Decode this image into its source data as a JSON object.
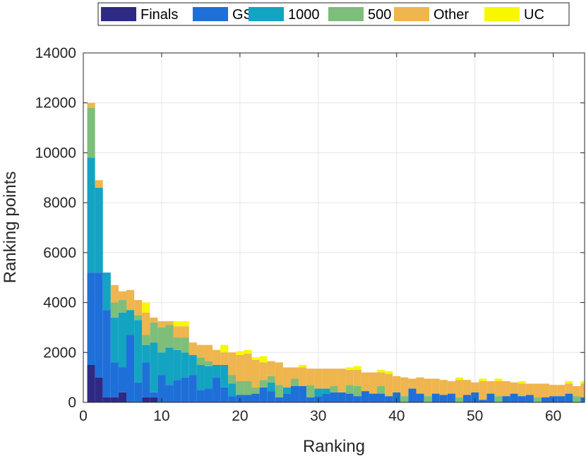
{
  "chart_data": {
    "type": "bar",
    "stacked": true,
    "xlabel": "Ranking",
    "ylabel": "Ranking points",
    "xlim": [
      0,
      64
    ],
    "ylim": [
      0,
      14000
    ],
    "x_ticks": [
      0,
      10,
      20,
      30,
      40,
      50,
      60
    ],
    "y_ticks": [
      0,
      2000,
      4000,
      6000,
      8000,
      10000,
      12000,
      14000
    ],
    "grid": true,
    "legend_position": "top",
    "series": [
      {
        "name": "Finals",
        "color": "#2e2a84",
        "values": [
          1500,
          1000,
          200,
          200,
          400,
          0,
          0,
          200,
          200,
          0,
          0,
          0,
          0,
          0,
          0,
          0,
          0,
          0,
          0,
          0,
          0,
          0,
          0,
          0,
          0,
          0,
          0,
          0,
          0,
          0,
          0,
          0,
          0,
          0,
          0,
          0,
          0,
          0,
          0,
          0,
          0,
          0,
          0,
          0,
          0,
          0,
          0,
          0,
          0,
          0,
          0,
          0,
          0,
          0,
          0,
          0,
          0,
          0,
          0,
          0,
          0,
          0,
          0,
          0
        ]
      },
      {
        "name": "GS",
        "color": "#1f6fd9",
        "values": [
          3700,
          4200,
          3500,
          1400,
          1000,
          2700,
          800,
          1400,
          200,
          1100,
          700,
          900,
          1000,
          1100,
          500,
          550,
          1000,
          600,
          250,
          300,
          300,
          350,
          600,
          450,
          200,
          350,
          650,
          650,
          200,
          250,
          350,
          400,
          400,
          350,
          250,
          450,
          350,
          350,
          250,
          400,
          0,
          550,
          350,
          0,
          350,
          300,
          350,
          0,
          300,
          400,
          100,
          350,
          0,
          250,
          350,
          250,
          300,
          0,
          200,
          250,
          250,
          350,
          0,
          200
        ]
      },
      {
        "name": "1000",
        "color": "#13a4c2",
        "values": [
          4600,
          3400,
          1500,
          1800,
          2200,
          1000,
          2500,
          700,
          2000,
          900,
          1500,
          1200,
          1000,
          800,
          1000,
          900,
          500,
          900,
          500,
          0,
          0,
          0,
          0,
          350,
          0,
          250,
          0,
          0,
          0,
          300,
          200,
          0,
          0,
          0,
          0,
          0,
          0,
          0,
          0,
          0,
          0,
          0,
          0,
          0,
          0,
          0,
          0,
          0,
          0,
          0,
          0,
          0,
          0,
          0,
          0,
          0,
          0,
          0,
          0,
          0,
          0,
          0,
          0,
          0
        ]
      },
      {
        "name": "500",
        "color": "#7dbe7a",
        "values": [
          2000,
          0,
          0,
          600,
          500,
          0,
          200,
          400,
          800,
          1000,
          900,
          500,
          600,
          0,
          300,
          200,
          0,
          0,
          350,
          550,
          550,
          250,
          300,
          250,
          500,
          0,
          300,
          0,
          500,
          0,
          0,
          250,
          0,
          350,
          400,
          0,
          0,
          300,
          0,
          0,
          250,
          0,
          0,
          250,
          0,
          0,
          0,
          200,
          0,
          0,
          0,
          0,
          250,
          0,
          0,
          0,
          0,
          200,
          0,
          0,
          0,
          0,
          250,
          0
        ]
      },
      {
        "name": "Other",
        "color": "#efb54e",
        "values": [
          200,
          300,
          0,
          700,
          350,
          800,
          600,
          900,
          200,
          250,
          150,
          450,
          450,
          500,
          500,
          650,
          600,
          500,
          900,
          1050,
          1100,
          1100,
          700,
          600,
          900,
          800,
          450,
          750,
          650,
          800,
          800,
          700,
          950,
          600,
          650,
          750,
          850,
          550,
          900,
          650,
          750,
          400,
          650,
          700,
          600,
          600,
          500,
          700,
          600,
          400,
          750,
          500,
          600,
          600,
          450,
          500,
          450,
          550,
          550,
          450,
          450,
          400,
          400,
          550
        ]
      },
      {
        "name": "UC",
        "color": "#f7f700",
        "values": [
          0,
          0,
          0,
          0,
          0,
          0,
          0,
          400,
          0,
          0,
          0,
          200,
          200,
          0,
          0,
          0,
          0,
          300,
          0,
          150,
          150,
          100,
          250,
          0,
          0,
          0,
          0,
          100,
          0,
          0,
          0,
          0,
          0,
          100,
          150,
          0,
          0,
          100,
          100,
          0,
          0,
          0,
          0,
          0,
          0,
          0,
          0,
          100,
          0,
          0,
          100,
          0,
          100,
          0,
          0,
          100,
          0,
          0,
          0,
          0,
          0,
          100,
          0,
          100
        ]
      }
    ]
  }
}
